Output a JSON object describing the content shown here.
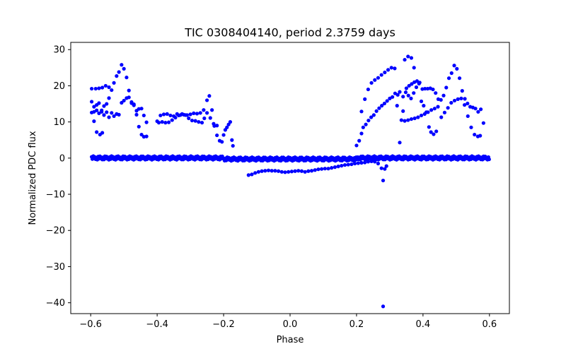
{
  "chart_data": {
    "type": "scatter",
    "title": "TIC 0308404140, period 2.3759 days",
    "xlabel": "Phase",
    "ylabel": "Normalized PDC flux",
    "xlim": [
      -0.66,
      0.66
    ],
    "ylim": [
      -43,
      32
    ],
    "xticks": [
      -0.6,
      -0.4,
      -0.2,
      0.0,
      0.2,
      0.4,
      0.6
    ],
    "xtick_labels": [
      "−0.6",
      "−0.4",
      "−0.2",
      "0.0",
      "0.2",
      "0.4",
      "0.6"
    ],
    "yticks": [
      30,
      20,
      10,
      0,
      -10,
      -20,
      -30,
      -40
    ],
    "ytick_labels": [
      "30",
      "20",
      "10",
      "0",
      "−10",
      "−20",
      "−30",
      "−40"
    ],
    "grid": false,
    "legend": "none",
    "colors": {
      "marker": "#0000ff",
      "axes": "#000000",
      "background": "#ffffff"
    },
    "series": [
      {
        "name": "flux",
        "points": [
          [
            -0.597,
            19.2
          ],
          [
            -0.585,
            19.2
          ],
          [
            -0.575,
            19.3
          ],
          [
            -0.565,
            19.5
          ],
          [
            -0.555,
            20.0
          ],
          [
            -0.545,
            19.6
          ],
          [
            -0.597,
            15.6
          ],
          [
            -0.59,
            14.2
          ],
          [
            -0.582,
            14.7
          ],
          [
            -0.575,
            15.2
          ],
          [
            -0.567,
            13.2
          ],
          [
            -0.56,
            14.4
          ],
          [
            -0.552,
            15.0
          ],
          [
            -0.545,
            16.6
          ],
          [
            -0.537,
            18.8
          ],
          [
            -0.53,
            20.8
          ],
          [
            -0.522,
            22.7
          ],
          [
            -0.515,
            23.8
          ],
          [
            -0.507,
            25.8
          ],
          [
            -0.5,
            24.7
          ],
          [
            -0.492,
            22.3
          ],
          [
            -0.485,
            18.7
          ],
          [
            -0.477,
            15.2
          ],
          [
            -0.47,
            14.9
          ],
          [
            -0.462,
            13.1
          ],
          [
            -0.455,
            13.6
          ],
          [
            -0.447,
            13.7
          ],
          [
            -0.44,
            11.8
          ],
          [
            -0.432,
            9.9
          ],
          [
            -0.597,
            12.6
          ],
          [
            -0.59,
            12.8
          ],
          [
            -0.582,
            13.2
          ],
          [
            -0.575,
            12.4
          ],
          [
            -0.567,
            12.8
          ],
          [
            -0.56,
            11.9
          ],
          [
            -0.552,
            12.7
          ],
          [
            -0.545,
            11.3
          ],
          [
            -0.537,
            12.5
          ],
          [
            -0.53,
            11.6
          ],
          [
            -0.522,
            12.2
          ],
          [
            -0.515,
            12.0
          ],
          [
            -0.507,
            15.3
          ],
          [
            -0.5,
            15.9
          ],
          [
            -0.492,
            16.6
          ],
          [
            -0.485,
            16.8
          ],
          [
            -0.477,
            15.5
          ],
          [
            -0.47,
            14.6
          ],
          [
            -0.462,
            12.0
          ],
          [
            -0.455,
            8.7
          ],
          [
            -0.447,
            6.5
          ],
          [
            -0.44,
            5.9
          ],
          [
            -0.432,
            6.0
          ],
          [
            -0.59,
            10.2
          ],
          [
            -0.582,
            7.2
          ],
          [
            -0.572,
            6.5
          ],
          [
            -0.565,
            7.0
          ],
          [
            -0.4,
            10.2
          ],
          [
            -0.39,
            11.8
          ],
          [
            -0.38,
            12.1
          ],
          [
            -0.37,
            12.2
          ],
          [
            -0.36,
            11.8
          ],
          [
            -0.35,
            11.6
          ],
          [
            -0.34,
            12.2
          ],
          [
            -0.33,
            11.9
          ],
          [
            -0.32,
            12.0
          ],
          [
            -0.31,
            11.9
          ],
          [
            -0.3,
            12.1
          ],
          [
            -0.29,
            12.4
          ],
          [
            -0.28,
            12.3
          ],
          [
            -0.27,
            12.5
          ],
          [
            -0.26,
            13.3
          ],
          [
            -0.25,
            12.5
          ],
          [
            -0.24,
            11.1
          ],
          [
            -0.23,
            9.5
          ],
          [
            -0.22,
            6.3
          ],
          [
            -0.395,
            9.8
          ],
          [
            -0.385,
            10.0
          ],
          [
            -0.375,
            9.8
          ],
          [
            -0.365,
            9.9
          ],
          [
            -0.355,
            10.5
          ],
          [
            -0.345,
            11.2
          ],
          [
            -0.335,
            11.8
          ],
          [
            -0.325,
            12.2
          ],
          [
            -0.315,
            11.9
          ],
          [
            -0.305,
            11.0
          ],
          [
            -0.295,
            10.4
          ],
          [
            -0.285,
            10.3
          ],
          [
            -0.275,
            10.0
          ],
          [
            -0.265,
            9.8
          ],
          [
            -0.258,
            11.0
          ],
          [
            -0.25,
            16.0
          ],
          [
            -0.243,
            17.2
          ],
          [
            -0.235,
            13.3
          ],
          [
            -0.228,
            8.9
          ],
          [
            -0.22,
            9.0
          ],
          [
            -0.212,
            4.8
          ],
          [
            -0.205,
            4.5
          ],
          [
            -0.2,
            6.4
          ],
          [
            -0.195,
            7.8
          ],
          [
            -0.19,
            8.5
          ],
          [
            -0.185,
            9.3
          ],
          [
            -0.18,
            10.0
          ],
          [
            -0.175,
            5.0
          ],
          [
            -0.172,
            3.4
          ],
          [
            -0.125,
            -4.7
          ],
          [
            -0.115,
            -4.5
          ],
          [
            -0.105,
            -4.1
          ],
          [
            -0.095,
            -3.8
          ],
          [
            -0.085,
            -3.6
          ],
          [
            -0.075,
            -3.5
          ],
          [
            -0.065,
            -3.4
          ],
          [
            -0.055,
            -3.5
          ],
          [
            -0.045,
            -3.5
          ],
          [
            -0.035,
            -3.6
          ],
          [
            -0.025,
            -3.8
          ],
          [
            -0.015,
            -3.9
          ],
          [
            -0.005,
            -3.8
          ],
          [
            0.005,
            -3.7
          ],
          [
            0.015,
            -3.6
          ],
          [
            0.025,
            -3.5
          ],
          [
            0.035,
            -3.6
          ],
          [
            0.045,
            -3.8
          ],
          [
            0.055,
            -3.6
          ],
          [
            0.065,
            -3.5
          ],
          [
            0.075,
            -3.3
          ],
          [
            0.085,
            -3.1
          ],
          [
            0.095,
            -3.0
          ],
          [
            0.105,
            -2.9
          ],
          [
            0.115,
            -2.9
          ],
          [
            0.125,
            -2.7
          ],
          [
            0.135,
            -2.5
          ],
          [
            0.145,
            -2.3
          ],
          [
            0.155,
            -2.1
          ],
          [
            0.165,
            -1.9
          ],
          [
            0.175,
            -1.8
          ],
          [
            0.185,
            -1.7
          ],
          [
            0.195,
            -1.5
          ],
          [
            0.205,
            -1.4
          ],
          [
            0.215,
            -1.3
          ],
          [
            0.225,
            -1.2
          ],
          [
            0.235,
            -1.0
          ],
          [
            0.245,
            -0.9
          ],
          [
            0.255,
            -1.0
          ],
          [
            0.265,
            -1.5
          ],
          [
            0.275,
            -2.8
          ],
          [
            0.28,
            -6.2
          ],
          [
            0.285,
            -3.0
          ],
          [
            0.29,
            -2.2
          ],
          [
            0.2,
            3.5
          ],
          [
            0.208,
            4.8
          ],
          [
            0.215,
            6.8
          ],
          [
            0.22,
            8.5
          ],
          [
            0.228,
            9.3
          ],
          [
            0.236,
            10.4
          ],
          [
            0.244,
            11.3
          ],
          [
            0.252,
            11.9
          ],
          [
            0.26,
            13.0
          ],
          [
            0.268,
            13.8
          ],
          [
            0.276,
            14.5
          ],
          [
            0.284,
            15.1
          ],
          [
            0.292,
            15.8
          ],
          [
            0.3,
            16.5
          ],
          [
            0.308,
            16.9
          ],
          [
            0.316,
            17.9
          ],
          [
            0.324,
            17.5
          ],
          [
            0.33,
            18.3
          ],
          [
            0.215,
            12.9
          ],
          [
            0.225,
            16.3
          ],
          [
            0.235,
            19.0
          ],
          [
            0.245,
            20.8
          ],
          [
            0.255,
            21.6
          ],
          [
            0.265,
            22.2
          ],
          [
            0.275,
            23.0
          ],
          [
            0.285,
            23.7
          ],
          [
            0.295,
            24.4
          ],
          [
            0.305,
            25.0
          ],
          [
            0.315,
            24.8
          ],
          [
            0.322,
            14.5
          ],
          [
            0.33,
            4.3
          ],
          [
            0.34,
            13.0
          ],
          [
            0.345,
            27.2
          ],
          [
            0.355,
            28.1
          ],
          [
            0.365,
            27.7
          ],
          [
            0.373,
            25.0
          ],
          [
            0.35,
            19.3
          ],
          [
            0.358,
            20.0
          ],
          [
            0.366,
            20.5
          ],
          [
            0.374,
            21.0
          ],
          [
            0.382,
            21.3
          ],
          [
            0.39,
            20.9
          ],
          [
            0.398,
            19.1
          ],
          [
            0.406,
            19.2
          ],
          [
            0.414,
            19.2
          ],
          [
            0.422,
            19.3
          ],
          [
            0.43,
            19.0
          ],
          [
            0.438,
            18.0
          ],
          [
            0.446,
            16.3
          ],
          [
            0.454,
            16.1
          ],
          [
            0.462,
            17.3
          ],
          [
            0.47,
            19.5
          ],
          [
            0.478,
            22.1
          ],
          [
            0.486,
            23.5
          ],
          [
            0.494,
            25.6
          ],
          [
            0.502,
            24.7
          ],
          [
            0.51,
            22.1
          ],
          [
            0.518,
            18.6
          ],
          [
            0.526,
            16.4
          ],
          [
            0.534,
            15.1
          ],
          [
            0.542,
            14.2
          ],
          [
            0.55,
            14.0
          ],
          [
            0.558,
            13.7
          ],
          [
            0.566,
            12.8
          ],
          [
            0.574,
            13.5
          ],
          [
            0.582,
            9.7
          ],
          [
            0.335,
            10.5
          ],
          [
            0.345,
            10.3
          ],
          [
            0.355,
            10.5
          ],
          [
            0.365,
            10.8
          ],
          [
            0.375,
            11.0
          ],
          [
            0.385,
            11.3
          ],
          [
            0.395,
            11.8
          ],
          [
            0.405,
            12.2
          ],
          [
            0.415,
            12.7
          ],
          [
            0.425,
            13.3
          ],
          [
            0.435,
            13.7
          ],
          [
            0.445,
            14.2
          ],
          [
            0.455,
            11.3
          ],
          [
            0.465,
            12.6
          ],
          [
            0.475,
            13.9
          ],
          [
            0.485,
            15.3
          ],
          [
            0.495,
            15.9
          ],
          [
            0.505,
            16.3
          ],
          [
            0.515,
            16.5
          ],
          [
            0.525,
            14.7
          ],
          [
            0.535,
            11.6
          ],
          [
            0.545,
            8.5
          ],
          [
            0.555,
            6.5
          ],
          [
            0.565,
            6.0
          ],
          [
            0.572,
            6.2
          ],
          [
            0.34,
            17.0
          ],
          [
            0.348,
            18.2
          ],
          [
            0.356,
            17.3
          ],
          [
            0.364,
            16.5
          ],
          [
            0.372,
            18.0
          ],
          [
            0.38,
            19.6
          ],
          [
            0.388,
            20.6
          ],
          [
            0.395,
            15.7
          ],
          [
            0.402,
            14.5
          ],
          [
            0.41,
            12.7
          ],
          [
            0.418,
            8.6
          ],
          [
            0.424,
            7.2
          ],
          [
            0.432,
            6.6
          ],
          [
            0.44,
            7.4
          ],
          [
            0.28,
            -41.0
          ]
        ]
      }
    ]
  }
}
